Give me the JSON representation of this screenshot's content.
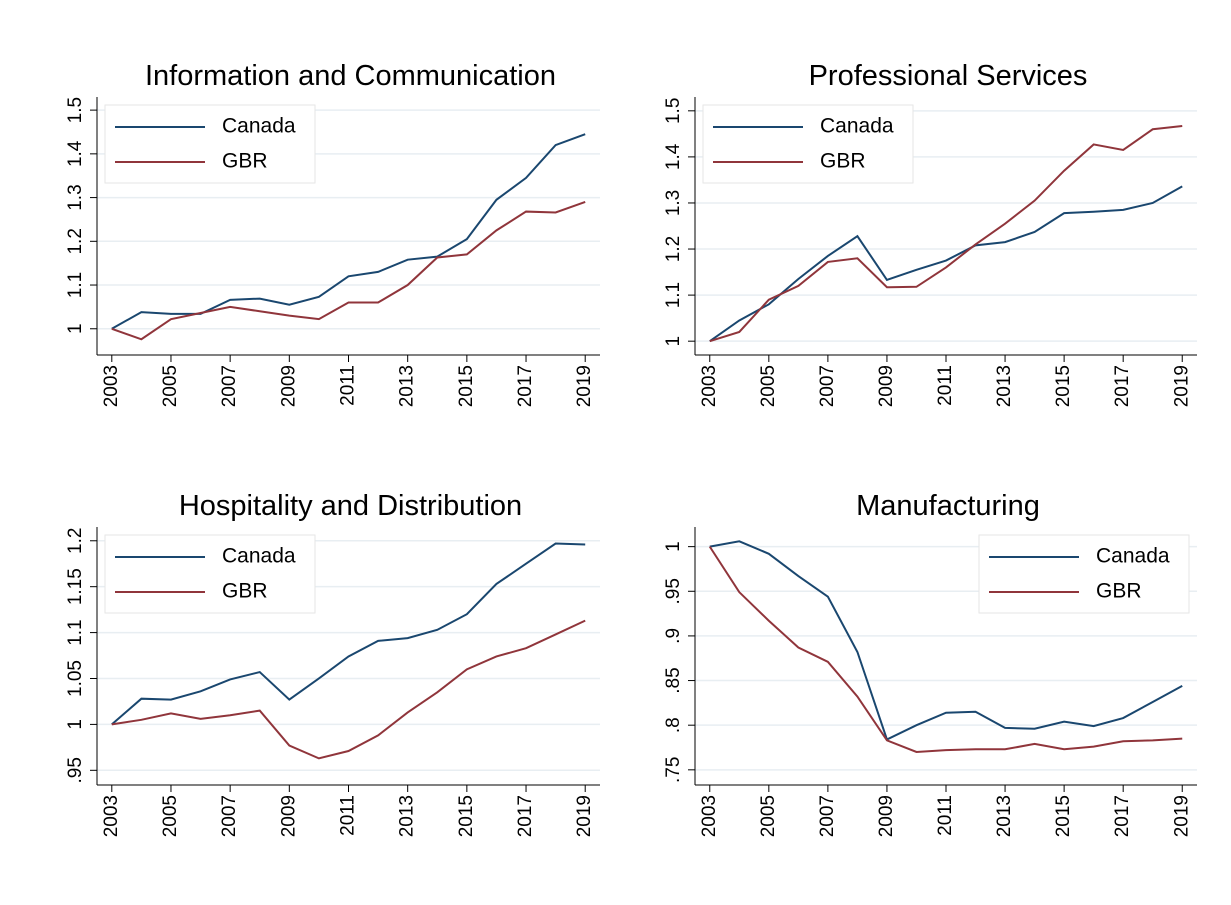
{
  "chart_data": [
    {
      "type": "line",
      "title": "Information and Communication",
      "x": [
        2003,
        2004,
        2005,
        2006,
        2007,
        2008,
        2009,
        2010,
        2011,
        2012,
        2013,
        2014,
        2015,
        2016,
        2017,
        2018,
        2019
      ],
      "series": [
        {
          "name": "Canada",
          "color": "#1a476f",
          "values": [
            1.0,
            1.038,
            1.034,
            1.034,
            1.066,
            1.069,
            1.055,
            1.073,
            1.12,
            1.13,
            1.158,
            1.165,
            1.205,
            1.295,
            1.345,
            1.42,
            1.445
          ]
        },
        {
          "name": "GBR",
          "color": "#90353b",
          "values": [
            1.0,
            0.976,
            1.022,
            1.036,
            1.05,
            1.04,
            1.03,
            1.022,
            1.06,
            1.06,
            1.1,
            1.163,
            1.17,
            1.225,
            1.268,
            1.266,
            1.29
          ]
        }
      ],
      "xlim": [
        2002.5,
        2019.5
      ],
      "xticks": [
        2003,
        2005,
        2007,
        2009,
        2011,
        2013,
        2015,
        2017,
        2019
      ],
      "ylim": [
        0.94,
        1.53
      ],
      "yticks": [
        1,
        1.1,
        1.2,
        1.3,
        1.4,
        1.5
      ],
      "grid": true,
      "legend": "upper left"
    },
    {
      "type": "line",
      "title": "Professional Services",
      "x": [
        2003,
        2004,
        2005,
        2006,
        2007,
        2008,
        2009,
        2010,
        2011,
        2012,
        2013,
        2014,
        2015,
        2016,
        2017,
        2018,
        2019
      ],
      "series": [
        {
          "name": "Canada",
          "color": "#1a476f",
          "values": [
            1.0,
            1.045,
            1.08,
            1.135,
            1.185,
            1.228,
            1.133,
            1.155,
            1.175,
            1.208,
            1.215,
            1.237,
            1.278,
            1.281,
            1.285,
            1.3,
            1.336
          ]
        },
        {
          "name": "GBR",
          "color": "#90353b",
          "values": [
            1.0,
            1.02,
            1.09,
            1.12,
            1.172,
            1.18,
            1.117,
            1.118,
            1.16,
            1.21,
            1.255,
            1.305,
            1.37,
            1.427,
            1.415,
            1.46,
            1.467
          ]
        }
      ],
      "xlim": [
        2002.5,
        2019.5
      ],
      "xticks": [
        2003,
        2005,
        2007,
        2009,
        2011,
        2013,
        2015,
        2017,
        2019
      ],
      "ylim": [
        0.97,
        1.53
      ],
      "yticks": [
        1,
        1.1,
        1.2,
        1.3,
        1.4,
        1.5
      ],
      "grid": true,
      "legend": "upper left"
    },
    {
      "type": "line",
      "title": "Hospitality and Distribution",
      "x": [
        2003,
        2004,
        2005,
        2006,
        2007,
        2008,
        2009,
        2010,
        2011,
        2012,
        2013,
        2014,
        2015,
        2016,
        2017,
        2018,
        2019
      ],
      "series": [
        {
          "name": "Canada",
          "color": "#1a476f",
          "values": [
            1.0,
            1.028,
            1.027,
            1.036,
            1.049,
            1.057,
            1.027,
            1.05,
            1.074,
            1.091,
            1.094,
            1.103,
            1.12,
            1.153,
            1.175,
            1.197,
            1.196
          ]
        },
        {
          "name": "GBR",
          "color": "#90353b",
          "values": [
            1.0,
            1.005,
            1.012,
            1.006,
            1.01,
            1.015,
            0.977,
            0.963,
            0.971,
            0.988,
            1.013,
            1.035,
            1.06,
            1.074,
            1.083,
            1.098,
            1.113
          ]
        }
      ],
      "xlim": [
        2002.5,
        2019.5
      ],
      "xticks": [
        2003,
        2005,
        2007,
        2009,
        2011,
        2013,
        2015,
        2017,
        2019
      ],
      "ylim": [
        0.934,
        1.215
      ],
      "yticks": [
        {
          "value": 0.95,
          "label": ".95"
        },
        1,
        1.05,
        1.1,
        1.15,
        1.2
      ],
      "grid": true,
      "legend": "upper left"
    },
    {
      "type": "line",
      "title": "Manufacturing",
      "x": [
        2003,
        2004,
        2005,
        2006,
        2007,
        2008,
        2009,
        2010,
        2011,
        2012,
        2013,
        2014,
        2015,
        2016,
        2017,
        2018,
        2019
      ],
      "series": [
        {
          "name": "Canada",
          "color": "#1a476f",
          "values": [
            1.0,
            1.006,
            0.992,
            0.967,
            0.944,
            0.882,
            0.784,
            0.8,
            0.814,
            0.815,
            0.797,
            0.796,
            0.804,
            0.799,
            0.808,
            0.826,
            0.844
          ]
        },
        {
          "name": "GBR",
          "color": "#90353b",
          "values": [
            1.0,
            0.949,
            0.917,
            0.887,
            0.871,
            0.832,
            0.783,
            0.77,
            0.772,
            0.773,
            0.773,
            0.779,
            0.773,
            0.776,
            0.782,
            0.783,
            0.785
          ]
        }
      ],
      "xlim": [
        2002.5,
        2019.5
      ],
      "xticks": [
        2003,
        2005,
        2007,
        2009,
        2011,
        2013,
        2015,
        2017,
        2019
      ],
      "ylim": [
        0.733,
        1.022
      ],
      "yticks": [
        {
          "value": 0.75,
          "label": ".75"
        },
        {
          "value": 0.8,
          "label": ".8"
        },
        {
          "value": 0.85,
          "label": ".85"
        },
        {
          "value": 0.9,
          "label": ".9"
        },
        {
          "value": 0.95,
          "label": ".95"
        },
        1
      ],
      "grid": true,
      "legend": "upper right"
    }
  ]
}
